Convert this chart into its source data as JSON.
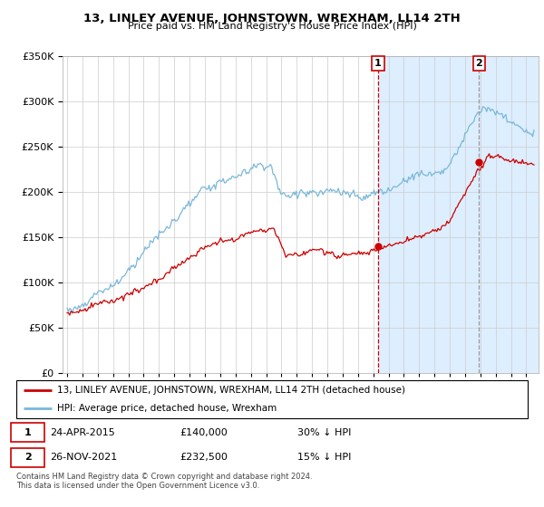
{
  "title": "13, LINLEY AVENUE, JOHNSTOWN, WREXHAM, LL14 2TH",
  "subtitle": "Price paid vs. HM Land Registry's House Price Index (HPI)",
  "legend_line1": "13, LINLEY AVENUE, JOHNSTOWN, WREXHAM, LL14 2TH (detached house)",
  "legend_line2": "HPI: Average price, detached house, Wrexham",
  "annotation1_date": "24-APR-2015",
  "annotation1_price": "£140,000",
  "annotation1_hpi": "30% ↓ HPI",
  "annotation2_date": "26-NOV-2021",
  "annotation2_price": "£232,500",
  "annotation2_hpi": "15% ↓ HPI",
  "footer": "Contains HM Land Registry data © Crown copyright and database right 2024.\nThis data is licensed under the Open Government Licence v3.0.",
  "hpi_color": "#7ab8d9",
  "price_color": "#cc0000",
  "vline1_color": "#cc0000",
  "vline2_color": "#999999",
  "span_color": "#ddeeff",
  "ylim": [
    0,
    350000
  ],
  "sale1_x": 2015.31,
  "sale1_y": 140000,
  "sale2_x": 2021.9,
  "sale2_y": 232500,
  "xmin": 1994.7,
  "xmax": 2025.5
}
